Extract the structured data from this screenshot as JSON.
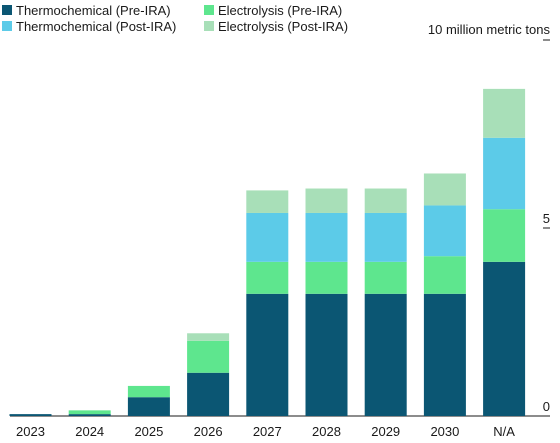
{
  "chart_data": {
    "type": "bar",
    "stacked": true,
    "unit_label": "10 million metric tons",
    "categories": [
      "2023",
      "2024",
      "2025",
      "2026",
      "2027",
      "2028",
      "2029",
      "2030",
      "N/A"
    ],
    "series": [
      {
        "name": "Thermochemical (Pre-IRA)",
        "color": "#0b5673",
        "values": [
          0.05,
          0.05,
          0.5,
          1.15,
          3.25,
          3.25,
          3.25,
          3.25,
          4.1
        ]
      },
      {
        "name": "Electrolysis (Pre-IRA)",
        "color": "#5ee68e",
        "values": [
          0.0,
          0.1,
          0.3,
          0.85,
          0.85,
          0.85,
          0.85,
          1.0,
          1.4
        ]
      },
      {
        "name": "Thermochemical (Post-IRA)",
        "color": "#5ccbe8",
        "values": [
          0.0,
          0.0,
          0.0,
          0.0,
          1.3,
          1.3,
          1.3,
          1.35,
          1.9
        ]
      },
      {
        "name": "Electrolysis (Post-IRA)",
        "color": "#a8dfb8",
        "values": [
          0.0,
          0.0,
          0.0,
          0.2,
          0.6,
          0.65,
          0.65,
          0.85,
          1.3
        ]
      }
    ],
    "y_ticks": [
      {
        "value": 0,
        "label": "0"
      },
      {
        "value": 5,
        "label": "5"
      }
    ],
    "ylim": [
      0,
      10
    ],
    "legend_position": "top-left"
  }
}
